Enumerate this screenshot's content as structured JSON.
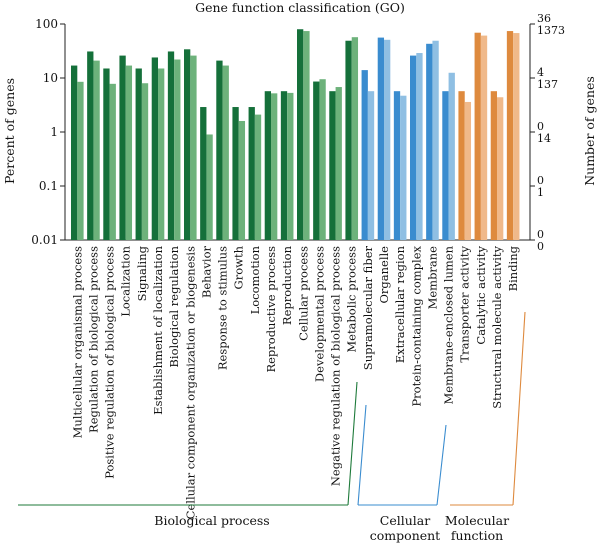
{
  "chart_data": {
    "type": "bar",
    "title": "Gene function classification (GO)",
    "ylabel": "Percent of genes",
    "ylabel_right": "Number of genes",
    "yscale": "log",
    "ylim": [
      0.01,
      100
    ],
    "left_ticks": [
      "100",
      "10",
      "1",
      "0.1",
      "0.01"
    ],
    "left_tick_values": [
      100,
      10,
      1,
      0.1,
      0.01
    ],
    "right_ticks": [
      {
        "value": 100,
        "top": "36",
        "bottom": "1373"
      },
      {
        "value": 10,
        "top": "4",
        "bottom": "137"
      },
      {
        "value": 1,
        "top": "0",
        "bottom": "14"
      },
      {
        "value": 0.1,
        "top": "0",
        "bottom": "1"
      },
      {
        "value": 0.01,
        "top": "0",
        "bottom": "0"
      }
    ],
    "grid": false,
    "legend": "none",
    "series": [
      {
        "values_percent_pair": true
      }
    ],
    "categories": [
      {
        "label": "Multicellular organismal process",
        "group": "bp",
        "values": [
          17,
          8.5
        ]
      },
      {
        "label": "Regulation of biological process",
        "group": "bp",
        "values": [
          31,
          21
        ]
      },
      {
        "label": "Positive regulation of biological process",
        "group": "bp",
        "values": [
          15,
          7.8
        ]
      },
      {
        "label": "Localization",
        "group": "bp",
        "values": [
          26,
          17
        ]
      },
      {
        "label": "Signaling",
        "group": "bp",
        "values": [
          15,
          8
        ]
      },
      {
        "label": "Establishment of localization",
        "group": "bp",
        "values": [
          24,
          15
        ]
      },
      {
        "label": "Biological regulation",
        "group": "bp",
        "values": [
          31,
          22
        ]
      },
      {
        "label": "Cellular component organization or biogenesis",
        "group": "bp",
        "values": [
          34,
          26
        ]
      },
      {
        "label": "Behavior",
        "group": "bp",
        "values": [
          2.9,
          0.9
        ]
      },
      {
        "label": "Response to stimulus",
        "group": "bp",
        "values": [
          21,
          17
        ]
      },
      {
        "label": "Growth",
        "group": "bp",
        "values": [
          2.9,
          1.6
        ]
      },
      {
        "label": "Locomotion",
        "group": "bp",
        "values": [
          2.9,
          2.1
        ]
      },
      {
        "label": "Reproductive process",
        "group": "bp",
        "values": [
          5.7,
          5.2
        ]
      },
      {
        "label": "Reproduction",
        "group": "bp",
        "values": [
          5.7,
          5.3
        ]
      },
      {
        "label": "Cellular process",
        "group": "bp",
        "values": [
          80,
          74
        ]
      },
      {
        "label": "Developmental process",
        "group": "bp",
        "values": [
          8.6,
          9.5
        ]
      },
      {
        "label": "Negative regulation of biological process",
        "group": "bp",
        "values": [
          5.7,
          6.8
        ]
      },
      {
        "label": "Metabolic process",
        "group": "bp",
        "values": [
          49,
          57
        ]
      },
      {
        "label": "Supramolecular fiber",
        "group": "cc",
        "values": [
          14,
          5.7
        ]
      },
      {
        "label": "Organelle",
        "group": "cc",
        "values": [
          56,
          51
        ]
      },
      {
        "label": "Extracellular region",
        "group": "cc",
        "values": [
          5.7,
          4.7
        ]
      },
      {
        "label": "Protein-containing complex",
        "group": "cc",
        "values": [
          26,
          29
        ]
      },
      {
        "label": "Membrane",
        "group": "cc",
        "values": [
          43,
          49
        ]
      },
      {
        "label": "Membrane-enclosed lumen",
        "group": "cc",
        "values": [
          5.7,
          12.5
        ]
      },
      {
        "label": "Transporter activity",
        "group": "mf",
        "values": [
          5.7,
          3.6
        ]
      },
      {
        "label": "Catalytic activity",
        "group": "mf",
        "values": [
          69,
          61
        ]
      },
      {
        "label": "Structural molecule activity",
        "group": "mf",
        "values": [
          5.7,
          4.4
        ]
      },
      {
        "label": "Binding",
        "group": "mf",
        "values": [
          74,
          68
        ]
      }
    ],
    "groups": {
      "bp": {
        "label": "Biological process",
        "label_lines": [
          "Biological process"
        ],
        "color_dark": "#15703a",
        "color_light": "#6db27b",
        "line_color": "#1e7a3a"
      },
      "cc": {
        "label": "Cellular component",
        "label_lines": [
          "Cellular",
          "component"
        ],
        "color_dark": "#3a8ccf",
        "color_light": "#8fbfe3",
        "line_color": "#3a8ccf"
      },
      "mf": {
        "label": "Molecular function",
        "label_lines": [
          "Molecular",
          "function"
        ],
        "color_dark": "#de8a3e",
        "color_light": "#f0b98a",
        "line_color": "#de8a3e"
      }
    }
  }
}
